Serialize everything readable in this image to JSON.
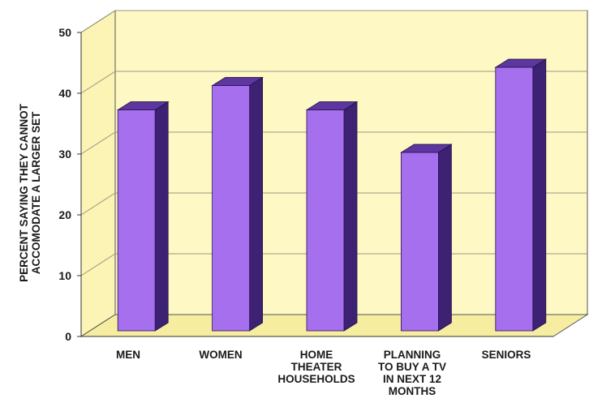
{
  "chart_data": {
    "type": "bar",
    "title": "",
    "xlabel": "",
    "ylabel_lines": [
      "PERCENT SAYING THEY CANNOT",
      "ACCOMODATE A LARGER SET"
    ],
    "ylim": [
      0,
      50
    ],
    "yticks": [
      "0",
      "10",
      "20",
      "30",
      "40",
      "50"
    ],
    "grid": true,
    "categories": [
      {
        "lines": [
          "MEN"
        ]
      },
      {
        "lines": [
          "WOMEN"
        ]
      },
      {
        "lines": [
          "HOME",
          "THEATER",
          "HOUSEHOLDS"
        ]
      },
      {
        "lines": [
          "PLANNING",
          "TO BUY A TV",
          "IN NEXT 12",
          "MONTHS"
        ]
      },
      {
        "lines": [
          "SENIORS"
        ]
      }
    ],
    "values": [
      36,
      40,
      36,
      29,
      43
    ],
    "colors": {
      "bar_front": "#a56fee",
      "bar_side": "#3d2173",
      "bar_top": "#5d36a0",
      "back_wall": "#fdf8c4",
      "floor": "#f6eda0",
      "side_wall": "#fbf4b4"
    }
  }
}
